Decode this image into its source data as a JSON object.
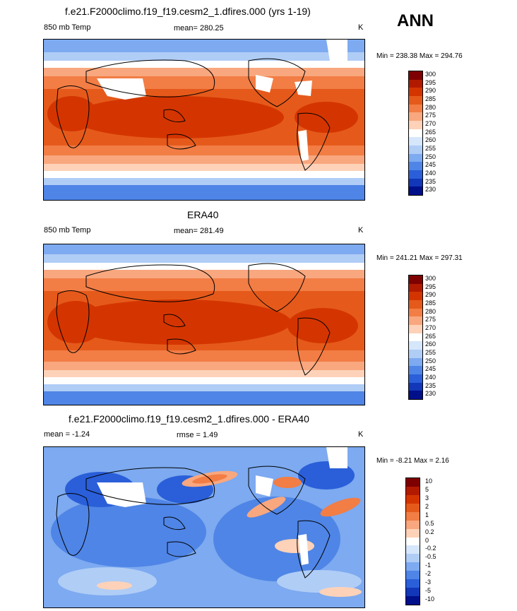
{
  "headline": "ANN",
  "panels": [
    {
      "id": "model",
      "title": "f.e21.F2000climo.f19_f19.cesm2_1.dfires.000 (yrs 1-19)",
      "left_label": "850 mb Temp",
      "center_label": "mean= 280.25",
      "units": "K",
      "minmax": "Min = 238.38 Max = 294.76",
      "levels": [
        "300",
        "295",
        "290",
        "285",
        "280",
        "275",
        "270",
        "265",
        "260",
        "255",
        "250",
        "245",
        "240",
        "235",
        "230"
      ],
      "colors": [
        "#7f0000",
        "#b21a00",
        "#d43500",
        "#e55a1b",
        "#f27d45",
        "#f9a77e",
        "#fdd2b8",
        "#ffffff",
        "#d6e6fb",
        "#b0cdf6",
        "#7daaf0",
        "#4f85e6",
        "#2a5fd9",
        "#1237b8",
        "#000f8a"
      ]
    },
    {
      "id": "obs",
      "title": "ERA40",
      "left_label": "850 mb Temp",
      "center_label": "mean= 281.49",
      "units": "K",
      "minmax": "Min = 241.21 Max = 297.31",
      "levels": [
        "300",
        "295",
        "290",
        "285",
        "280",
        "275",
        "270",
        "265",
        "260",
        "255",
        "250",
        "245",
        "240",
        "235",
        "230"
      ],
      "colors": [
        "#7f0000",
        "#b21a00",
        "#d43500",
        "#e55a1b",
        "#f27d45",
        "#f9a77e",
        "#fdd2b8",
        "#ffffff",
        "#d6e6fb",
        "#b0cdf6",
        "#7daaf0",
        "#4f85e6",
        "#2a5fd9",
        "#1237b8",
        "#000f8a"
      ]
    },
    {
      "id": "diff",
      "title": "f.e21.F2000climo.f19_f19.cesm2_1.dfires.000 - ERA40",
      "left_label": "mean =  -1.24",
      "center_label": "rmse =   1.49",
      "units": "K",
      "minmax": "Min =  -8.21 Max =   2.16",
      "levels": [
        "10",
        "5",
        "3",
        "2",
        "1",
        "0.5",
        "0.2",
        "0",
        "-0.2",
        "-0.5",
        "-1",
        "-2",
        "-3",
        "-5",
        "-10"
      ],
      "colors": [
        "#7f0000",
        "#b21a00",
        "#d43500",
        "#e55a1b",
        "#f27d45",
        "#f9a77e",
        "#fdd2b8",
        "#ffffff",
        "#d6e6fb",
        "#b0cdf6",
        "#7daaf0",
        "#4f85e6",
        "#2a5fd9",
        "#1237b8",
        "#000f8a"
      ]
    }
  ]
}
